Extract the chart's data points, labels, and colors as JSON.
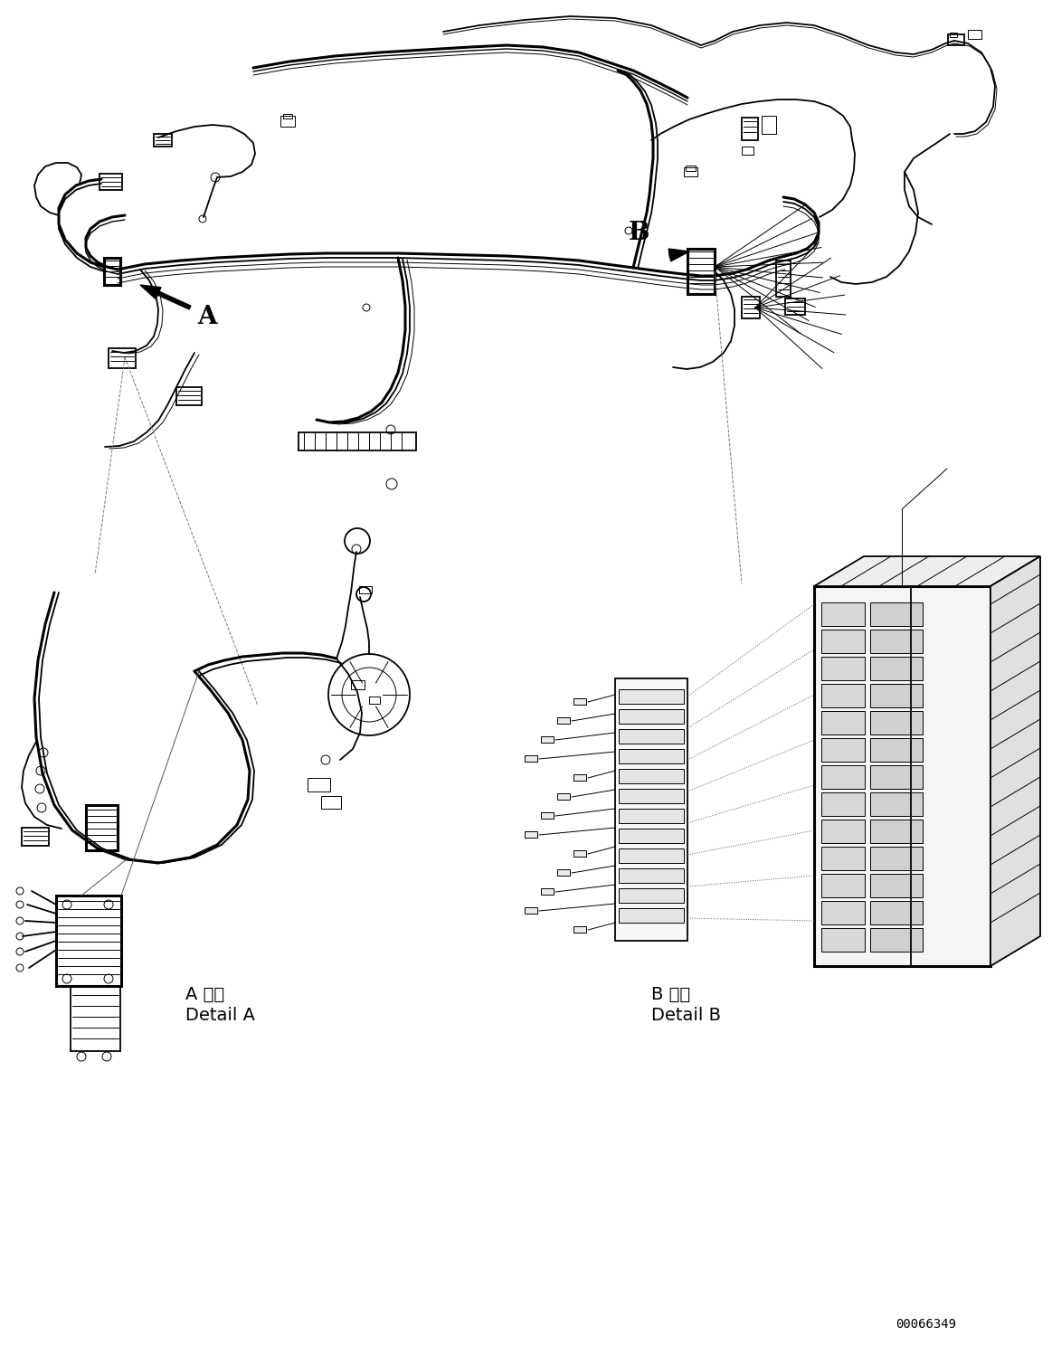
{
  "background_color": "#ffffff",
  "line_color": "#000000",
  "figure_width": 11.63,
  "figure_height": 14.88,
  "dpi": 100,
  "label_A": "A",
  "label_B": "B",
  "detail_A_japanese": "A 詳細",
  "detail_A_english": "Detail A",
  "detail_B_japanese": "B 詳細",
  "detail_B_english": "Detail B",
  "part_number": "00066349",
  "font_size_labels": 20,
  "font_size_details": 13,
  "font_size_partnumber": 10
}
